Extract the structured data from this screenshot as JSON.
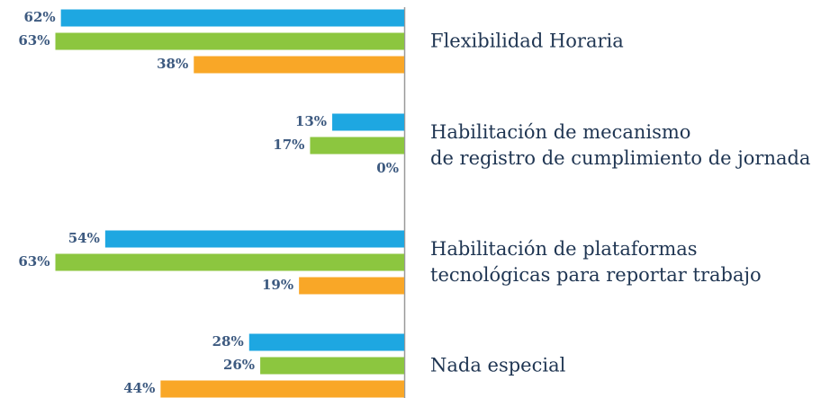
{
  "chart_data": {
    "type": "barh",
    "categories": [
      [
        "Flexibilidad Horaria"
      ],
      [
        "Habilitación de mecanismo",
        "de registro de cumplimiento de jornada"
      ],
      [
        "Habilitación de plataformas",
        "tecnológicas para reportar trabajo"
      ],
      [
        "Nada especial"
      ]
    ],
    "series": [
      {
        "color": "#1ea7e1",
        "values": [
          62,
          13,
          54,
          28
        ],
        "value_labels": [
          "62%",
          "13%",
          "54%",
          "28%"
        ]
      },
      {
        "color": "#8cc63f",
        "values": [
          63,
          17,
          63,
          26
        ],
        "value_labels": [
          "63%",
          "17%",
          "63%",
          "26%"
        ]
      },
      {
        "color": "#f9a727",
        "values": [
          38,
          0,
          19,
          44
        ],
        "value_labels": [
          "38%",
          "0%",
          "19%",
          "44%"
        ]
      }
    ],
    "xlim": [
      0,
      73
    ]
  }
}
